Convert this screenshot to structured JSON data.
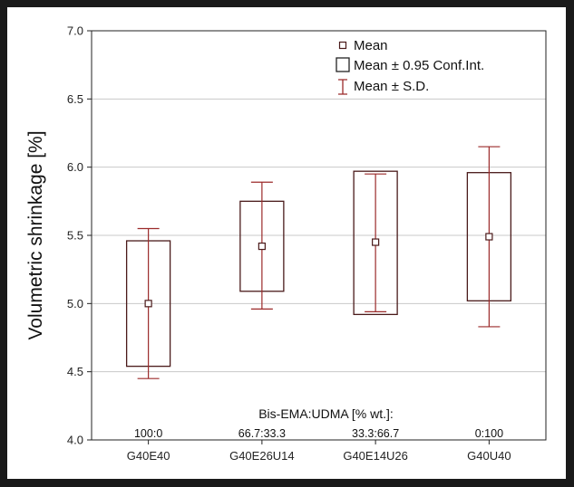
{
  "chart_data": {
    "type": "box",
    "ylabel": "Volumetric shrinkage [%]",
    "ylim": [
      4.0,
      7.0
    ],
    "yticks": [
      "4.0",
      "4.5",
      "5.0",
      "5.5",
      "6.0",
      "6.5",
      "7.0"
    ],
    "categories": [
      "G40E40",
      "G40E26U14",
      "G40E14U26",
      "G40U40"
    ],
    "annotation_title": "Bis-EMA:UDMA  [% wt.]:",
    "ratios": [
      "100:0",
      "66.7:33.3",
      "33.3:66.7",
      "0:100"
    ],
    "legend": {
      "position": "top-right",
      "mean": "Mean",
      "ci": "Mean ± 0.95 Conf.Int.",
      "sd": "Mean ± S.D."
    },
    "grid": true,
    "series": [
      {
        "mean": 5.0,
        "ci_low": 4.54,
        "ci_high": 5.46,
        "sd_low": 4.45,
        "sd_high": 5.55
      },
      {
        "mean": 5.42,
        "ci_low": 5.09,
        "ci_high": 5.75,
        "sd_low": 4.96,
        "sd_high": 5.89
      },
      {
        "mean": 5.45,
        "ci_low": 4.92,
        "ci_high": 5.97,
        "sd_low": 4.94,
        "sd_high": 5.95
      },
      {
        "mean": 5.49,
        "ci_low": 5.02,
        "ci_high": 5.96,
        "sd_low": 4.83,
        "sd_high": 6.15
      }
    ],
    "colors": {
      "box": "#4a1a1a",
      "whisker": "#9b2a2a",
      "grid": "#c8c8c8",
      "axis": "#222222"
    }
  }
}
